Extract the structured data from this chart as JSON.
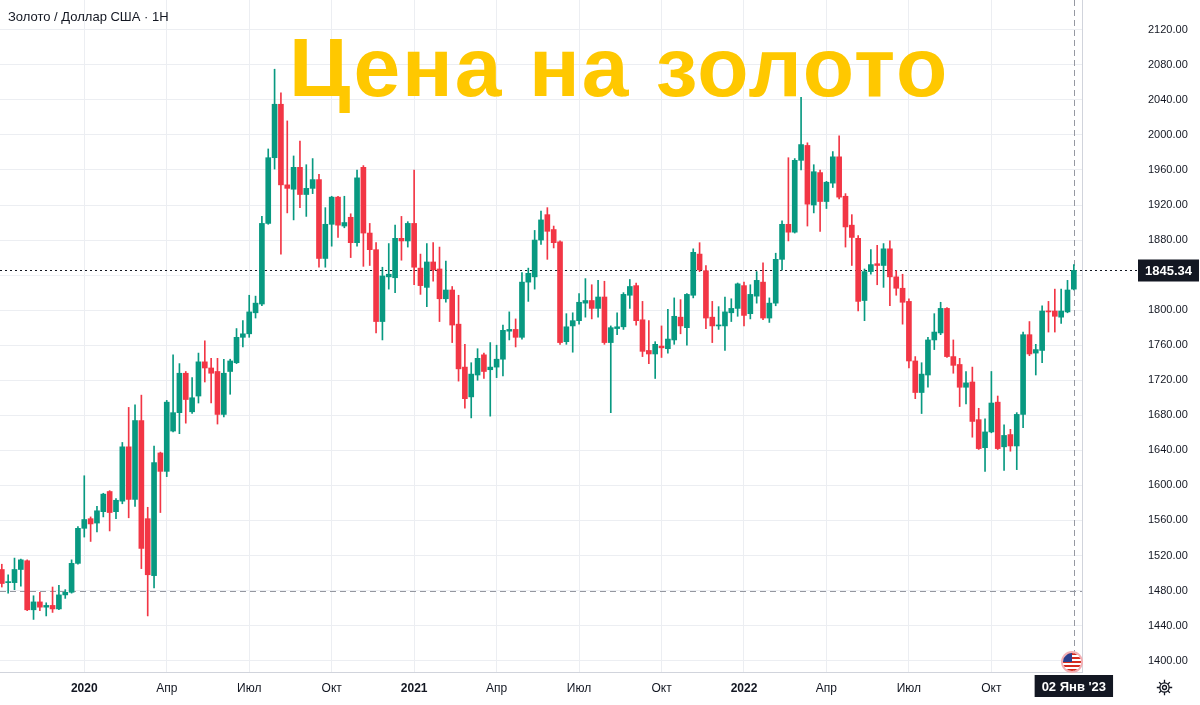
{
  "chart_data": {
    "type": "candlestick",
    "title": "Цена на золото",
    "subtitle": "Золото / Доллар США · 1Н",
    "x": [
      "2019-10-07",
      "2019-10-14",
      "2019-10-21",
      "2019-10-28",
      "2019-11-04",
      "2019-11-11",
      "2019-11-18",
      "2019-11-25",
      "2019-12-02",
      "2019-12-09",
      "2019-12-16",
      "2019-12-23",
      "2019-12-30",
      "2020-01-06",
      "2020-01-13",
      "2020-01-20",
      "2020-01-27",
      "2020-02-03",
      "2020-02-10",
      "2020-02-17",
      "2020-02-24",
      "2020-03-02",
      "2020-03-09",
      "2020-03-16",
      "2020-03-23",
      "2020-03-30",
      "2020-04-06",
      "2020-04-13",
      "2020-04-20",
      "2020-04-27",
      "2020-05-04",
      "2020-05-11",
      "2020-05-18",
      "2020-05-25",
      "2020-06-01",
      "2020-06-08",
      "2020-06-15",
      "2020-06-22",
      "2020-06-29",
      "2020-07-06",
      "2020-07-13",
      "2020-07-20",
      "2020-07-27",
      "2020-08-03",
      "2020-08-10",
      "2020-08-17",
      "2020-08-24",
      "2020-08-31",
      "2020-09-07",
      "2020-09-14",
      "2020-09-21",
      "2020-09-28",
      "2020-10-05",
      "2020-10-12",
      "2020-10-19",
      "2020-10-26",
      "2020-11-02",
      "2020-11-09",
      "2020-11-16",
      "2020-11-23",
      "2020-11-30",
      "2020-12-07",
      "2020-12-14",
      "2020-12-21",
      "2020-12-28",
      "2021-01-04",
      "2021-01-11",
      "2021-01-18",
      "2021-01-25",
      "2021-02-01",
      "2021-02-08",
      "2021-02-15",
      "2021-02-22",
      "2021-03-01",
      "2021-03-08",
      "2021-03-15",
      "2021-03-22",
      "2021-03-29",
      "2021-04-05",
      "2021-04-12",
      "2021-04-19",
      "2021-04-26",
      "2021-05-03",
      "2021-05-10",
      "2021-05-17",
      "2021-05-24",
      "2021-05-31",
      "2021-06-07",
      "2021-06-14",
      "2021-06-21",
      "2021-06-28",
      "2021-07-05",
      "2021-07-12",
      "2021-07-19",
      "2021-07-26",
      "2021-08-02",
      "2021-08-09",
      "2021-08-16",
      "2021-08-23",
      "2021-08-30",
      "2021-09-06",
      "2021-09-13",
      "2021-09-20",
      "2021-09-27",
      "2021-10-04",
      "2021-10-11",
      "2021-10-18",
      "2021-10-25",
      "2021-11-01",
      "2021-11-08",
      "2021-11-15",
      "2021-11-22",
      "2021-11-29",
      "2021-12-06",
      "2021-12-13",
      "2021-12-20",
      "2021-12-27",
      "2022-01-03",
      "2022-01-10",
      "2022-01-17",
      "2022-01-24",
      "2022-01-31",
      "2022-02-07",
      "2022-02-14",
      "2022-02-21",
      "2022-02-28",
      "2022-03-07",
      "2022-03-14",
      "2022-03-21",
      "2022-03-28",
      "2022-04-04",
      "2022-04-11",
      "2022-04-18",
      "2022-04-25",
      "2022-05-02",
      "2022-05-09",
      "2022-05-16",
      "2022-05-23",
      "2022-05-30",
      "2022-06-06",
      "2022-06-13",
      "2022-06-20",
      "2022-06-27",
      "2022-07-04",
      "2022-07-11",
      "2022-07-18",
      "2022-07-25",
      "2022-08-01",
      "2022-08-08",
      "2022-08-15",
      "2022-08-22",
      "2022-08-29",
      "2022-09-05",
      "2022-09-12",
      "2022-09-19",
      "2022-09-26",
      "2022-10-03",
      "2022-10-10",
      "2022-10-17",
      "2022-10-24",
      "2022-10-31",
      "2022-11-07",
      "2022-11-14",
      "2022-11-21",
      "2022-11-28",
      "2022-12-05",
      "2022-12-12",
      "2022-12-19",
      "2022-12-26",
      "2023-01-02"
    ],
    "ohlc": [
      [
        1504,
        1510,
        1484,
        1488
      ],
      [
        1489,
        1498,
        1477,
        1490
      ],
      [
        1489,
        1517,
        1481,
        1504
      ],
      [
        1504,
        1516,
        1485,
        1515
      ],
      [
        1514,
        1515,
        1457,
        1458
      ],
      [
        1458,
        1474,
        1447,
        1467
      ],
      [
        1467,
        1478,
        1457,
        1461
      ],
      [
        1461,
        1466,
        1451,
        1463
      ],
      [
        1463,
        1484,
        1455,
        1459
      ],
      [
        1459,
        1486,
        1458,
        1475
      ],
      [
        1475,
        1481,
        1471,
        1478
      ],
      [
        1478,
        1515,
        1477,
        1511
      ],
      [
        1511,
        1553,
        1510,
        1551
      ],
      [
        1551,
        1611,
        1541,
        1561
      ],
      [
        1562,
        1564,
        1536,
        1556
      ],
      [
        1557,
        1576,
        1547,
        1571
      ],
      [
        1570,
        1591,
        1564,
        1590
      ],
      [
        1593,
        1594,
        1548,
        1569
      ],
      [
        1570,
        1585,
        1562,
        1583
      ],
      [
        1582,
        1649,
        1579,
        1644
      ],
      [
        1644,
        1689,
        1563,
        1584
      ],
      [
        1584,
        1692,
        1576,
        1674
      ],
      [
        1674,
        1703,
        1505,
        1528
      ],
      [
        1562,
        1575,
        1451,
        1498
      ],
      [
        1497,
        1645,
        1483,
        1626
      ],
      [
        1637,
        1638,
        1569,
        1616
      ],
      [
        1616,
        1697,
        1610,
        1695
      ],
      [
        1662,
        1749,
        1661,
        1683
      ],
      [
        1683,
        1739,
        1659,
        1728
      ],
      [
        1728,
        1730,
        1671,
        1698
      ],
      [
        1684,
        1723,
        1682,
        1700
      ],
      [
        1702,
        1751,
        1694,
        1741
      ],
      [
        1741,
        1765,
        1718,
        1734
      ],
      [
        1734,
        1745,
        1694,
        1728
      ],
      [
        1730,
        1745,
        1670,
        1681
      ],
      [
        1681,
        1744,
        1678,
        1728
      ],
      [
        1730,
        1744,
        1704,
        1742
      ],
      [
        1740,
        1779,
        1739,
        1769
      ],
      [
        1769,
        1788,
        1758,
        1773
      ],
      [
        1773,
        1817,
        1769,
        1798
      ],
      [
        1797,
        1816,
        1791,
        1808
      ],
      [
        1807,
        1907,
        1805,
        1899
      ],
      [
        1899,
        1984,
        1898,
        1974
      ],
      [
        1974,
        2075,
        1961,
        2035
      ],
      [
        2035,
        2048,
        1864,
        1943
      ],
      [
        1943,
        2016,
        1911,
        1939
      ],
      [
        1938,
        1976,
        1903,
        1963
      ],
      [
        1963,
        1993,
        1917,
        1932
      ],
      [
        1932,
        1966,
        1907,
        1939
      ],
      [
        1939,
        1973,
        1933,
        1949
      ],
      [
        1949,
        1955,
        1849,
        1859
      ],
      [
        1859,
        1917,
        1849,
        1898
      ],
      [
        1898,
        1930,
        1873,
        1929
      ],
      [
        1929,
        1930,
        1883,
        1897
      ],
      [
        1896,
        1930,
        1894,
        1900
      ],
      [
        1906,
        1910,
        1860,
        1877
      ],
      [
        1877,
        1960,
        1873,
        1951
      ],
      [
        1963,
        1965,
        1850,
        1888
      ],
      [
        1888,
        1899,
        1851,
        1869
      ],
      [
        1869,
        1877,
        1774,
        1787
      ],
      [
        1787,
        1849,
        1766,
        1839
      ],
      [
        1838,
        1876,
        1824,
        1841
      ],
      [
        1837,
        1897,
        1820,
        1882
      ],
      [
        1882,
        1907,
        1857,
        1879
      ],
      [
        1879,
        1901,
        1872,
        1899
      ],
      [
        1899,
        1960,
        1829,
        1849
      ],
      [
        1848,
        1864,
        1818,
        1828
      ],
      [
        1826,
        1876,
        1804,
        1855
      ],
      [
        1855,
        1877,
        1833,
        1846
      ],
      [
        1847,
        1872,
        1787,
        1813
      ],
      [
        1813,
        1856,
        1809,
        1823
      ],
      [
        1823,
        1827,
        1763,
        1783
      ],
      [
        1784,
        1817,
        1719,
        1733
      ],
      [
        1735,
        1761,
        1688,
        1699
      ],
      [
        1701,
        1740,
        1677,
        1727
      ],
      [
        1726,
        1756,
        1720,
        1745
      ],
      [
        1749,
        1751,
        1722,
        1730
      ],
      [
        1732,
        1763,
        1679,
        1735
      ],
      [
        1735,
        1760,
        1723,
        1744
      ],
      [
        1744,
        1783,
        1725,
        1777
      ],
      [
        1776,
        1798,
        1766,
        1778
      ],
      [
        1778,
        1790,
        1758,
        1769
      ],
      [
        1769,
        1843,
        1767,
        1832
      ],
      [
        1832,
        1848,
        1810,
        1842
      ],
      [
        1838,
        1891,
        1824,
        1880
      ],
      [
        1880,
        1913,
        1875,
        1903
      ],
      [
        1909,
        1917,
        1858,
        1890
      ],
      [
        1892,
        1896,
        1871,
        1877
      ],
      [
        1878,
        1879,
        1761,
        1763
      ],
      [
        1764,
        1796,
        1761,
        1781
      ],
      [
        1782,
        1797,
        1752,
        1788
      ],
      [
        1788,
        1819,
        1784,
        1809
      ],
      [
        1808,
        1836,
        1792,
        1811
      ],
      [
        1811,
        1829,
        1790,
        1802
      ],
      [
        1802,
        1834,
        1792,
        1815
      ],
      [
        1815,
        1833,
        1761,
        1763
      ],
      [
        1763,
        1782,
        1683,
        1780
      ],
      [
        1779,
        1797,
        1772,
        1781
      ],
      [
        1781,
        1820,
        1778,
        1818
      ],
      [
        1817,
        1835,
        1802,
        1827
      ],
      [
        1828,
        1831,
        1783,
        1788
      ],
      [
        1789,
        1810,
        1747,
        1753
      ],
      [
        1754,
        1788,
        1739,
        1750
      ],
      [
        1750,
        1764,
        1722,
        1761
      ],
      [
        1759,
        1782,
        1746,
        1757
      ],
      [
        1756,
        1801,
        1751,
        1767
      ],
      [
        1766,
        1814,
        1761,
        1793
      ],
      [
        1792,
        1812,
        1773,
        1782
      ],
      [
        1780,
        1819,
        1760,
        1818
      ],
      [
        1817,
        1870,
        1814,
        1866
      ],
      [
        1864,
        1877,
        1844,
        1846
      ],
      [
        1845,
        1851,
        1779,
        1791
      ],
      [
        1792,
        1810,
        1763,
        1782
      ],
      [
        1782,
        1804,
        1778,
        1783
      ],
      [
        1782,
        1815,
        1754,
        1798
      ],
      [
        1797,
        1813,
        1787,
        1802
      ],
      [
        1802,
        1831,
        1793,
        1830
      ],
      [
        1828,
        1832,
        1782,
        1794
      ],
      [
        1796,
        1829,
        1790,
        1818
      ],
      [
        1816,
        1844,
        1808,
        1834
      ],
      [
        1832,
        1854,
        1789,
        1791
      ],
      [
        1791,
        1814,
        1786,
        1808
      ],
      [
        1808,
        1865,
        1805,
        1858
      ],
      [
        1858,
        1902,
        1846,
        1898
      ],
      [
        1898,
        1974,
        1879,
        1889
      ],
      [
        1889,
        1973,
        1888,
        1971
      ],
      [
        1971,
        2043,
        1960,
        1989
      ],
      [
        1988,
        1991,
        1896,
        1921
      ],
      [
        1920,
        1966,
        1911,
        1958
      ],
      [
        1957,
        1960,
        1890,
        1924
      ],
      [
        1924,
        1947,
        1916,
        1946
      ],
      [
        1945,
        1981,
        1940,
        1975
      ],
      [
        1975,
        1999,
        1927,
        1929
      ],
      [
        1930,
        1933,
        1872,
        1895
      ],
      [
        1897,
        1909,
        1851,
        1883
      ],
      [
        1882,
        1885,
        1799,
        1810
      ],
      [
        1811,
        1847,
        1788,
        1844
      ],
      [
        1844,
        1869,
        1841,
        1852
      ],
      [
        1853,
        1874,
        1829,
        1851
      ],
      [
        1851,
        1876,
        1826,
        1870
      ],
      [
        1870,
        1879,
        1805,
        1838
      ],
      [
        1838,
        1845,
        1817,
        1825
      ],
      [
        1825,
        1841,
        1784,
        1809
      ],
      [
        1810,
        1813,
        1734,
        1742
      ],
      [
        1742,
        1747,
        1699,
        1706
      ],
      [
        1706,
        1740,
        1682,
        1727
      ],
      [
        1726,
        1769,
        1712,
        1766
      ],
      [
        1766,
        1796,
        1755,
        1775
      ],
      [
        1774,
        1809,
        1772,
        1802
      ],
      [
        1802,
        1803,
        1746,
        1747
      ],
      [
        1747,
        1766,
        1728,
        1737
      ],
      [
        1738,
        1745,
        1690,
        1712
      ],
      [
        1712,
        1730,
        1693,
        1717
      ],
      [
        1718,
        1735,
        1655,
        1673
      ],
      [
        1675,
        1688,
        1641,
        1642
      ],
      [
        1643,
        1676,
        1616,
        1661
      ],
      [
        1661,
        1730,
        1660,
        1694
      ],
      [
        1695,
        1702,
        1641,
        1642
      ],
      [
        1644,
        1669,
        1617,
        1657
      ],
      [
        1658,
        1664,
        1639,
        1645
      ],
      [
        1645,
        1683,
        1618,
        1681
      ],
      [
        1681,
        1775,
        1666,
        1772
      ],
      [
        1772,
        1787,
        1748,
        1750
      ],
      [
        1751,
        1761,
        1726,
        1755
      ],
      [
        1754,
        1805,
        1740,
        1799
      ],
      [
        1799,
        1810,
        1775,
        1798
      ],
      [
        1799,
        1824,
        1775,
        1793
      ],
      [
        1792,
        1824,
        1785,
        1799
      ],
      [
        1798,
        1834,
        1797,
        1823
      ],
      [
        1824,
        1852,
        1823,
        1845.34
      ]
    ],
    "colors": [
      "#f23645",
      "#089981",
      "#089981",
      "#089981",
      "#f23645",
      "#089981",
      "#f23645",
      "#089981",
      "#f23645",
      "#089981",
      "#089981",
      "#089981",
      "#089981",
      "#089981",
      "#f23645",
      "#089981",
      "#089981",
      "#f23645",
      "#089981",
      "#089981",
      "#f23645",
      "#089981",
      "#f23645",
      "#f23645",
      "#089981",
      "#f23645",
      "#089981",
      "#089981",
      "#089981",
      "#f23645",
      "#089981",
      "#089981",
      "#f23645",
      "#f23645",
      "#f23645",
      "#089981",
      "#089981",
      "#089981",
      "#089981",
      "#089981",
      "#089981",
      "#089981",
      "#089981",
      "#089981",
      "#f23645",
      "#f23645",
      "#089981",
      "#f23645",
      "#089981",
      "#089981",
      "#f23645",
      "#089981",
      "#089981",
      "#f23645",
      "#089981",
      "#f23645",
      "#089981",
      "#f23645",
      "#f23645",
      "#f23645",
      "#089981",
      "#089981",
      "#089981",
      "#f23645",
      "#089981",
      "#f23645",
      "#f23645",
      "#089981",
      "#f23645",
      "#f23645",
      "#089981",
      "#f23645",
      "#f23645",
      "#f23645",
      "#089981",
      "#089981",
      "#f23645",
      "#089981",
      "#089981",
      "#089981",
      "#089981",
      "#f23645",
      "#089981",
      "#089981",
      "#089981",
      "#089981",
      "#f23645",
      "#f23645",
      "#f23645",
      "#089981",
      "#089981",
      "#089981",
      "#089981",
      "#f23645",
      "#089981",
      "#f23645",
      "#089981",
      "#089981",
      "#089981",
      "#089981",
      "#f23645",
      "#f23645",
      "#f23645",
      "#089981",
      "#f23645",
      "#089981",
      "#089981",
      "#f23645",
      "#089981",
      "#089981",
      "#f23645",
      "#f23645",
      "#f23645",
      "#089981",
      "#089981",
      "#089981",
      "#089981",
      "#f23645",
      "#089981",
      "#089981",
      "#f23645",
      "#089981",
      "#089981",
      "#089981",
      "#f23645",
      "#089981",
      "#089981",
      "#f23645",
      "#089981",
      "#f23645",
      "#089981",
      "#089981",
      "#f23645",
      "#f23645",
      "#f23645",
      "#f23645",
      "#089981",
      "#089981",
      "#f23645",
      "#089981",
      "#f23645",
      "#f23645",
      "#f23645",
      "#f23645",
      "#f23645",
      "#089981",
      "#089981",
      "#089981",
      "#089981",
      "#f23645",
      "#f23645",
      "#f23645",
      "#089981",
      "#f23645",
      "#f23645",
      "#089981",
      "#089981",
      "#f23645",
      "#089981",
      "#f23645",
      "#089981",
      "#089981",
      "#f23645",
      "#089981",
      "#089981",
      "#f23645",
      "#f23645",
      "#089981",
      "#089981",
      "#089981"
    ],
    "xlim": [
      "2019-10-05",
      "2023-01-11"
    ],
    "xticks": [
      {
        "value": "2020-01-06",
        "label": "2020"
      },
      {
        "value": "2020-04-06",
        "label": "Апр"
      },
      {
        "value": "2020-07-06",
        "label": "Июл"
      },
      {
        "value": "2020-10-05",
        "label": "Окт"
      },
      {
        "value": "2021-01-04",
        "label": "2021"
      },
      {
        "value": "2021-04-05",
        "label": "Апр"
      },
      {
        "value": "2021-07-05",
        "label": "Июл"
      },
      {
        "value": "2021-10-04",
        "label": "Окт"
      },
      {
        "value": "2022-01-03",
        "label": "2022"
      },
      {
        "value": "2022-04-04",
        "label": "Апр"
      },
      {
        "value": "2022-07-04",
        "label": "Июл"
      },
      {
        "value": "2022-10-03",
        "label": "Окт"
      }
    ],
    "ylim": [
      1387,
      2154
    ],
    "yticks": [
      {
        "value": 1400,
        "label": "1400.00"
      },
      {
        "value": 1440,
        "label": "1440.00"
      },
      {
        "value": 1480,
        "label": "1480.00"
      },
      {
        "value": 1520,
        "label": "1520.00"
      },
      {
        "value": 1560,
        "label": "1560.00"
      },
      {
        "value": 1600,
        "label": "1600.00"
      },
      {
        "value": 1640,
        "label": "1640.00"
      },
      {
        "value": 1680,
        "label": "1680.00"
      },
      {
        "value": 1720,
        "label": "1720.00"
      },
      {
        "value": 1760,
        "label": "1760.00"
      },
      {
        "value": 1800,
        "label": "1800.00"
      },
      {
        "value": 1840,
        "label": null
      },
      {
        "value": 1880,
        "label": "1880.00"
      },
      {
        "value": 1920,
        "label": "1920.00"
      },
      {
        "value": 1960,
        "label": "1960.00"
      },
      {
        "value": 2000,
        "label": "2000.00"
      },
      {
        "value": 2040,
        "label": "2040.00"
      },
      {
        "value": 2080,
        "label": "2080.00"
      },
      {
        "value": 2120,
        "label": "2120.00"
      }
    ],
    "grid": true,
    "ref_lines": [
      {
        "axis": "y",
        "value": 1845.34,
        "label": "1845.34",
        "color": "#131722",
        "line_style": "dotted"
      },
      {
        "axis": "y",
        "value": 1480,
        "label": null,
        "color": "#9598a1",
        "line_style": "dashed"
      },
      {
        "axis": "x",
        "value": "2023-01-02",
        "label": "02 Янв '23",
        "color": "#9598a1",
        "line_style": "dashed"
      }
    ]
  }
}
